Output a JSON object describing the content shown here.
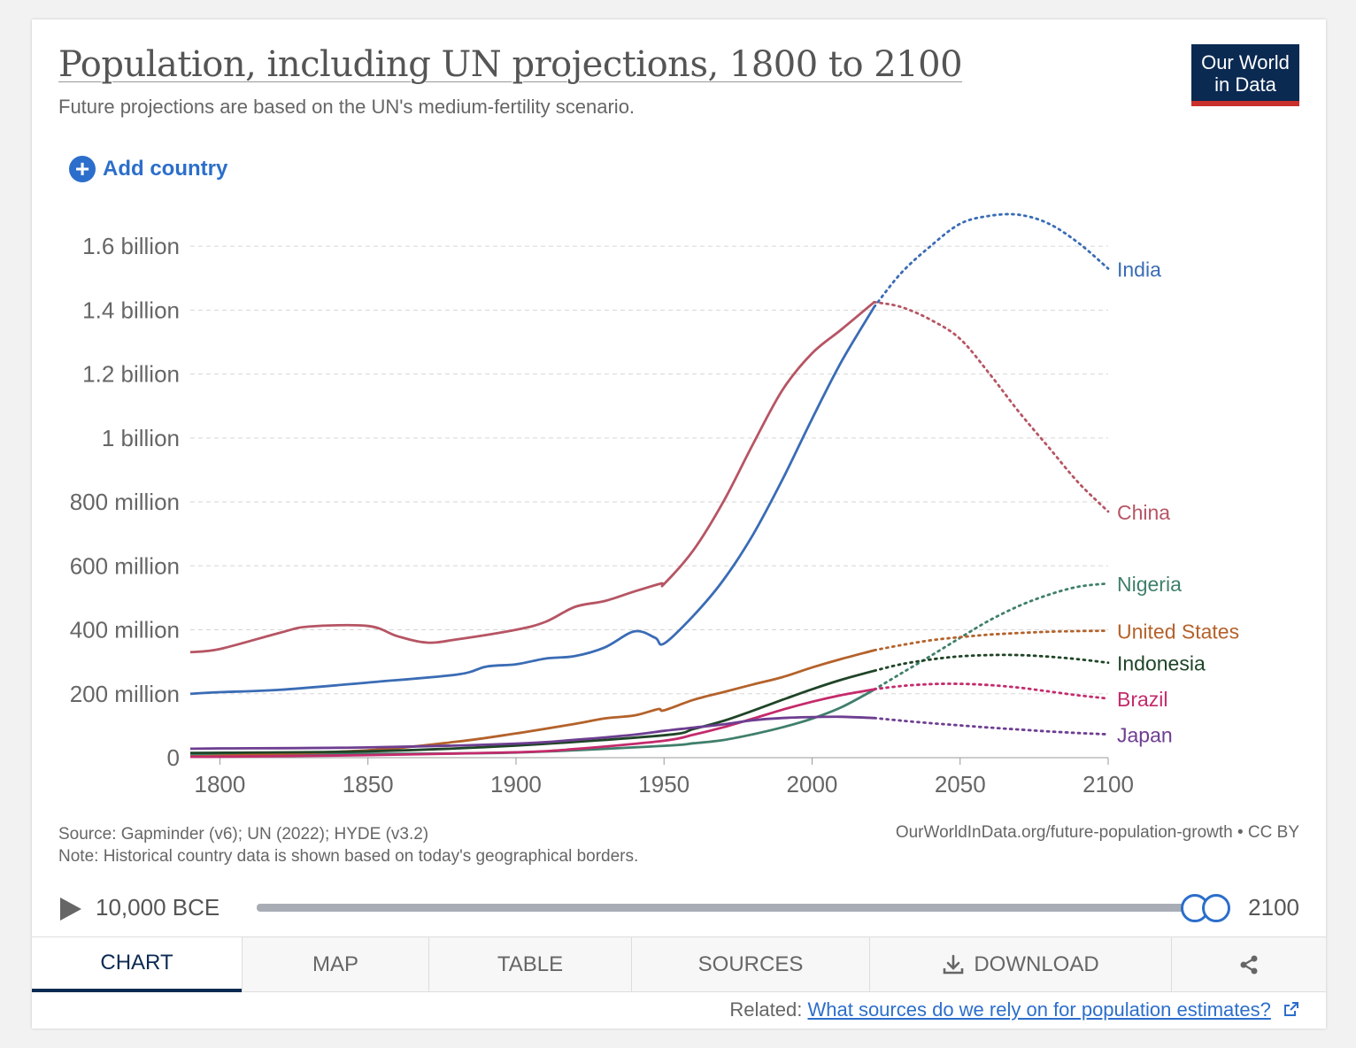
{
  "header": {
    "title": "Population, including UN projections, 1800 to 2100",
    "subtitle": "Future projections are based on the UN's medium-fertility scenario.",
    "logo_line1": "Our World",
    "logo_line2": "in Data",
    "add_country": "Add country"
  },
  "chart_data": {
    "type": "line",
    "xlim": [
      1790,
      2100
    ],
    "ylim": [
      0,
      1700000000
    ],
    "x_ticks": [
      1800,
      1850,
      1900,
      1950,
      2000,
      2050,
      2100
    ],
    "x_tick_labels": [
      "1800",
      "1850",
      "1900",
      "1950",
      "2000",
      "2050",
      "2100"
    ],
    "y_ticks": [
      0,
      200000000,
      400000000,
      600000000,
      800000000,
      1000000000,
      1200000000,
      1400000000,
      1600000000
    ],
    "y_tick_labels": [
      "0",
      "200 million",
      "400 million",
      "600 million",
      "800 million",
      "1 billion",
      "1.2 billion",
      "1.4 billion",
      "1.6 billion"
    ],
    "grid": "horizontal-dashed",
    "projection_start": 2021,
    "series": [
      {
        "name": "India",
        "color": "#3a6cb5",
        "points": [
          [
            1790,
            200
          ],
          [
            1800,
            205
          ],
          [
            1820,
            212
          ],
          [
            1850,
            235
          ],
          [
            1880,
            260
          ],
          [
            1890,
            285
          ],
          [
            1900,
            292
          ],
          [
            1910,
            310
          ],
          [
            1920,
            318
          ],
          [
            1930,
            345
          ],
          [
            1940,
            395
          ],
          [
            1947,
            375
          ],
          [
            1950,
            357
          ],
          [
            1960,
            445
          ],
          [
            1970,
            555
          ],
          [
            1980,
            697
          ],
          [
            1990,
            870
          ],
          [
            2000,
            1060
          ],
          [
            2010,
            1240
          ],
          [
            2021,
            1410
          ],
          [
            2030,
            1515
          ],
          [
            2040,
            1600
          ],
          [
            2050,
            1670
          ],
          [
            2060,
            1695
          ],
          [
            2070,
            1698
          ],
          [
            2080,
            1670
          ],
          [
            2090,
            1610
          ],
          [
            2100,
            1530
          ]
        ]
      },
      {
        "name": "China",
        "color": "#b65564",
        "points": [
          [
            1790,
            330
          ],
          [
            1800,
            340
          ],
          [
            1820,
            390
          ],
          [
            1830,
            410
          ],
          [
            1850,
            412
          ],
          [
            1860,
            380
          ],
          [
            1870,
            360
          ],
          [
            1880,
            370
          ],
          [
            1900,
            400
          ],
          [
            1910,
            425
          ],
          [
            1920,
            472
          ],
          [
            1930,
            490
          ],
          [
            1940,
            520
          ],
          [
            1949,
            545
          ],
          [
            1950,
            543
          ],
          [
            1960,
            650
          ],
          [
            1970,
            800
          ],
          [
            1980,
            980
          ],
          [
            1990,
            1150
          ],
          [
            2000,
            1265
          ],
          [
            2010,
            1340
          ],
          [
            2021,
            1425
          ],
          [
            2030,
            1410
          ],
          [
            2040,
            1370
          ],
          [
            2050,
            1310
          ],
          [
            2060,
            1200
          ],
          [
            2070,
            1080
          ],
          [
            2080,
            970
          ],
          [
            2090,
            860
          ],
          [
            2100,
            770
          ]
        ]
      },
      {
        "name": "Nigeria",
        "color": "#3f7f6b",
        "points": [
          [
            1790,
            10
          ],
          [
            1850,
            12
          ],
          [
            1900,
            16
          ],
          [
            1950,
            37
          ],
          [
            1960,
            45
          ],
          [
            1970,
            55
          ],
          [
            1980,
            73
          ],
          [
            1990,
            95
          ],
          [
            2000,
            122
          ],
          [
            2010,
            158
          ],
          [
            2021,
            213
          ],
          [
            2030,
            263
          ],
          [
            2040,
            318
          ],
          [
            2050,
            375
          ],
          [
            2060,
            430
          ],
          [
            2070,
            475
          ],
          [
            2080,
            510
          ],
          [
            2090,
            535
          ],
          [
            2100,
            545
          ]
        ]
      },
      {
        "name": "United States",
        "color": "#b4622b",
        "points": [
          [
            1790,
            4
          ],
          [
            1800,
            6
          ],
          [
            1850,
            23
          ],
          [
            1880,
            50
          ],
          [
            1900,
            76
          ],
          [
            1920,
            106
          ],
          [
            1930,
            123
          ],
          [
            1940,
            132
          ],
          [
            1948,
            152
          ],
          [
            1950,
            148
          ],
          [
            1960,
            181
          ],
          [
            1970,
            205
          ],
          [
            1980,
            229
          ],
          [
            1990,
            252
          ],
          [
            2000,
            282
          ],
          [
            2010,
            309
          ],
          [
            2021,
            336
          ],
          [
            2030,
            352
          ],
          [
            2040,
            367
          ],
          [
            2050,
            377
          ],
          [
            2060,
            385
          ],
          [
            2070,
            390
          ],
          [
            2080,
            394
          ],
          [
            2090,
            396
          ],
          [
            2100,
            397
          ]
        ]
      },
      {
        "name": "Indonesia",
        "color": "#1f4427",
        "points": [
          [
            1790,
            15
          ],
          [
            1850,
            20
          ],
          [
            1900,
            38
          ],
          [
            1950,
            70
          ],
          [
            1960,
            90
          ],
          [
            1970,
            115
          ],
          [
            1980,
            147
          ],
          [
            1990,
            181
          ],
          [
            2000,
            214
          ],
          [
            2010,
            244
          ],
          [
            2021,
            272
          ],
          [
            2030,
            292
          ],
          [
            2040,
            307
          ],
          [
            2050,
            317
          ],
          [
            2060,
            321
          ],
          [
            2070,
            321
          ],
          [
            2080,
            316
          ],
          [
            2090,
            308
          ],
          [
            2100,
            297
          ]
        ]
      },
      {
        "name": "Brazil",
        "color": "#c42b6c",
        "points": [
          [
            1790,
            3
          ],
          [
            1800,
            3
          ],
          [
            1850,
            8
          ],
          [
            1900,
            17
          ],
          [
            1920,
            27
          ],
          [
            1950,
            53
          ],
          [
            1960,
            72
          ],
          [
            1970,
            95
          ],
          [
            1980,
            122
          ],
          [
            1990,
            150
          ],
          [
            2000,
            175
          ],
          [
            2010,
            196
          ],
          [
            2021,
            214
          ],
          [
            2030,
            224
          ],
          [
            2040,
            230
          ],
          [
            2050,
            231
          ],
          [
            2060,
            227
          ],
          [
            2070,
            219
          ],
          [
            2080,
            207
          ],
          [
            2090,
            195
          ],
          [
            2100,
            185
          ]
        ]
      },
      {
        "name": "Japan",
        "color": "#6d3e91",
        "points": [
          [
            1790,
            28
          ],
          [
            1800,
            29
          ],
          [
            1850,
            32
          ],
          [
            1900,
            44
          ],
          [
            1920,
            56
          ],
          [
            1940,
            72
          ],
          [
            1950,
            84
          ],
          [
            1960,
            94
          ],
          [
            1970,
            104
          ],
          [
            1980,
            117
          ],
          [
            1990,
            124
          ],
          [
            2000,
            127
          ],
          [
            2010,
            128
          ],
          [
            2021,
            124
          ],
          [
            2030,
            116
          ],
          [
            2040,
            108
          ],
          [
            2050,
            101
          ],
          [
            2060,
            94
          ],
          [
            2070,
            88
          ],
          [
            2080,
            82
          ],
          [
            2090,
            77
          ],
          [
            2100,
            73
          ]
        ]
      }
    ],
    "points_unit": "million",
    "labels": [
      {
        "name": "India",
        "text": "India",
        "color": "#3a6cb5"
      },
      {
        "name": "China",
        "text": "China",
        "color": "#b65564"
      },
      {
        "name": "Nigeria",
        "text": "Nigeria",
        "color": "#3f7f6b"
      },
      {
        "name": "United States",
        "text": "United States",
        "color": "#b4622b"
      },
      {
        "name": "Indonesia",
        "text": "Indonesia",
        "color": "#1f4427"
      },
      {
        "name": "Brazil",
        "text": "Brazil",
        "color": "#c42b6c"
      },
      {
        "name": "Japan",
        "text": "Japan",
        "color": "#6d3e91"
      }
    ]
  },
  "footer": {
    "source": "Source: Gapminder (v6); UN (2022); HYDE (v3.2)",
    "note": "Note: Historical country data is shown based on today's geographical borders.",
    "url": "OurWorldInData.org/future-population-growth • CC BY"
  },
  "timeline": {
    "start": "10,000 BCE",
    "end": "2100"
  },
  "tabs": [
    "CHART",
    "MAP",
    "TABLE",
    "SOURCES",
    "DOWNLOAD",
    ""
  ],
  "related": {
    "prefix": "Related: ",
    "link": "What sources do we rely on for population estimates?"
  }
}
